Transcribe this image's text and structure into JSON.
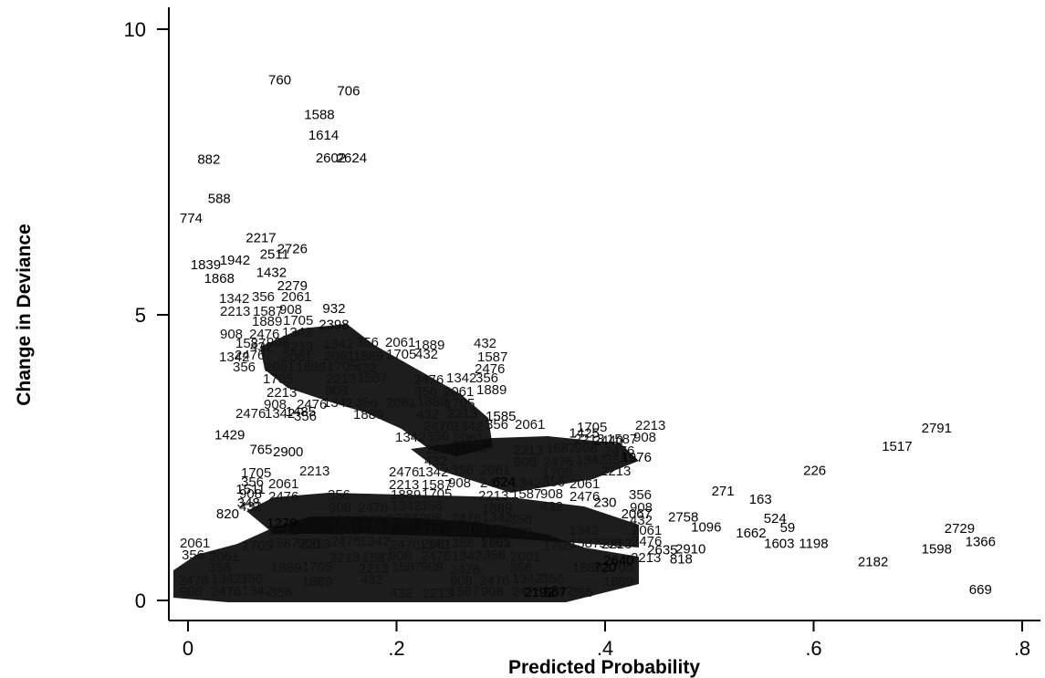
{
  "chart_data": {
    "type": "scatter",
    "title": "",
    "xlabel": "Predicted Probability",
    "ylabel": "Change in Deviance",
    "xlim": [
      -0.02,
      0.8
    ],
    "ylim": [
      -0.3,
      10.4
    ],
    "x_ticks": [
      0,
      0.2,
      0.4,
      0.6,
      0.8
    ],
    "x_tick_labels": [
      "0",
      ".2",
      ".4",
      ".6",
      ".8"
    ],
    "y_ticks": [
      0,
      5,
      10
    ],
    "y_tick_labels": [
      "0",
      "5",
      "10"
    ],
    "grid": false,
    "marker": "observation id label",
    "points": [
      {
        "x": 0.088,
        "y": 9.03,
        "label": "760"
      },
      {
        "x": 0.154,
        "y": 8.84,
        "label": "706"
      },
      {
        "x": 0.126,
        "y": 8.43,
        "label": "1588"
      },
      {
        "x": 0.13,
        "y": 8.07,
        "label": "1614"
      },
      {
        "x": 0.137,
        "y": 7.67,
        "label": "2602"
      },
      {
        "x": 0.157,
        "y": 7.67,
        "label": "2624"
      },
      {
        "x": 0.02,
        "y": 7.64,
        "label": "882"
      },
      {
        "x": 0.03,
        "y": 6.96,
        "label": "588"
      },
      {
        "x": 0.003,
        "y": 6.61,
        "label": "774"
      },
      {
        "x": 0.07,
        "y": 6.27,
        "label": "2217"
      },
      {
        "x": 0.1,
        "y": 6.08,
        "label": "2726"
      },
      {
        "x": 0.083,
        "y": 5.98,
        "label": "2511"
      },
      {
        "x": 0.045,
        "y": 5.88,
        "label": "1942"
      },
      {
        "x": 0.017,
        "y": 5.8,
        "label": "1839"
      },
      {
        "x": 0.08,
        "y": 5.66,
        "label": "1432"
      },
      {
        "x": 0.03,
        "y": 5.56,
        "label": "1868"
      },
      {
        "x": 0.1,
        "y": 5.43,
        "label": "2279"
      },
      {
        "x": 0.14,
        "y": 5.03,
        "label": "932"
      },
      {
        "x": 0.14,
        "y": 4.75,
        "label": "2398"
      },
      {
        "x": 0.108,
        "y": 3.23,
        "label": "1485"
      },
      {
        "x": 0.3,
        "y": 3.15,
        "label": "1585"
      },
      {
        "x": 0.38,
        "y": 2.85,
        "label": "1425"
      },
      {
        "x": 0.403,
        "y": 2.72,
        "label": "2440"
      },
      {
        "x": 0.04,
        "y": 2.82,
        "label": "1429"
      },
      {
        "x": 0.07,
        "y": 2.56,
        "label": "765"
      },
      {
        "x": 0.096,
        "y": 2.52,
        "label": "2900"
      },
      {
        "x": 0.43,
        "y": 2.43,
        "label": "1976"
      },
      {
        "x": 0.303,
        "y": 2.0,
        "label": "624"
      },
      {
        "x": 0.06,
        "y": 1.87,
        "label": "1511"
      },
      {
        "x": 0.058,
        "y": 1.63,
        "label": "348"
      },
      {
        "x": 0.038,
        "y": 1.44,
        "label": "820"
      },
      {
        "x": 0.09,
        "y": 1.28,
        "label": "1279"
      },
      {
        "x": 0.43,
        "y": 1.44,
        "label": "2067"
      },
      {
        "x": 0.4,
        "y": 1.64,
        "label": "230"
      },
      {
        "x": 0.513,
        "y": 1.84,
        "label": "271"
      },
      {
        "x": 0.549,
        "y": 1.69,
        "label": "163"
      },
      {
        "x": 0.601,
        "y": 2.2,
        "label": "226"
      },
      {
        "x": 0.563,
        "y": 1.36,
        "label": "524"
      },
      {
        "x": 0.575,
        "y": 1.2,
        "label": "59"
      },
      {
        "x": 0.54,
        "y": 1.1,
        "label": "1662"
      },
      {
        "x": 0.68,
        "y": 2.62,
        "label": "1517"
      },
      {
        "x": 0.718,
        "y": 2.94,
        "label": "2791"
      },
      {
        "x": 0.6,
        "y": 0.92,
        "label": "1198"
      },
      {
        "x": 0.567,
        "y": 0.92,
        "label": "1603"
      },
      {
        "x": 0.76,
        "y": 0.95,
        "label": "1366"
      },
      {
        "x": 0.74,
        "y": 1.18,
        "label": "2729"
      },
      {
        "x": 0.718,
        "y": 0.82,
        "label": "1598"
      },
      {
        "x": 0.657,
        "y": 0.6,
        "label": "2182"
      },
      {
        "x": 0.76,
        "y": 0.11,
        "label": "669"
      },
      {
        "x": 0.482,
        "y": 0.82,
        "label": "2910"
      },
      {
        "x": 0.455,
        "y": 0.81,
        "label": "2635"
      },
      {
        "x": 0.337,
        "y": 0.06,
        "label": "2192"
      },
      {
        "x": 0.352,
        "y": 0.06,
        "label": "567"
      },
      {
        "x": 0.475,
        "y": 1.38,
        "label": "2758"
      },
      {
        "x": 0.497,
        "y": 1.21,
        "label": "1096"
      },
      {
        "x": 0.473,
        "y": 0.65,
        "label": "818"
      },
      {
        "x": 0.4,
        "y": 0.5,
        "label": "720"
      },
      {
        "x": 0.413,
        "y": 0.62,
        "label": "2640"
      }
    ]
  }
}
